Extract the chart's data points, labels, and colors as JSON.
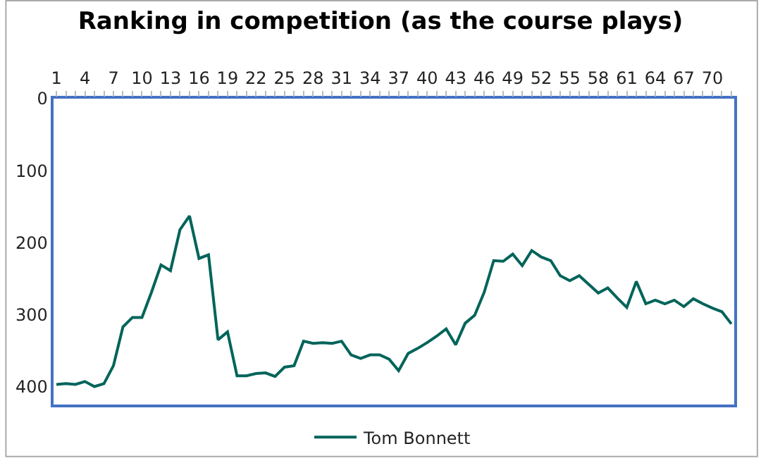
{
  "chart_data": {
    "type": "line",
    "title": "Ranking in competition (as the course plays)",
    "categories": [
      "1",
      null,
      null,
      "4",
      null,
      null,
      "7",
      null,
      null,
      "10",
      null,
      null,
      "13",
      null,
      null,
      "16",
      null,
      null,
      "19",
      null,
      null,
      "22",
      null,
      null,
      "25",
      null,
      null,
      "28",
      null,
      null,
      "31",
      null,
      null,
      "34",
      null,
      null,
      "37",
      null,
      null,
      "40",
      null,
      null,
      "43",
      null,
      null,
      "46",
      null,
      null,
      "49",
      null,
      null,
      "52",
      null,
      null,
      "55",
      null,
      null,
      "58",
      null,
      null,
      "61",
      null,
      null,
      "64",
      null,
      null,
      "67",
      null,
      null,
      "70",
      null,
      null
    ],
    "series": [
      {
        "name": "Tom Bonnett",
        "color": "#00645a",
        "values": [
          397,
          396,
          397,
          393,
          400,
          396,
          371,
          317,
          304,
          304,
          269,
          231,
          239,
          182,
          163,
          222,
          217,
          335,
          324,
          385,
          385,
          382,
          381,
          386,
          373,
          371,
          337,
          340,
          339,
          340,
          337,
          356,
          361,
          356,
          356,
          362,
          378,
          354,
          347,
          339,
          330,
          320,
          342,
          312,
          301,
          269,
          225,
          226,
          216,
          232,
          211,
          220,
          225,
          246,
          253,
          246,
          258,
          270,
          263,
          277,
          290,
          254,
          285,
          280,
          285,
          280,
          289,
          278,
          285,
          291,
          296,
          313
        ]
      }
    ],
    "ylim": [
      425,
      0
    ],
    "yticks": [
      0,
      100,
      200,
      300,
      400
    ],
    "legend": "bottom",
    "marker": "none",
    "line_style": "solid"
  }
}
